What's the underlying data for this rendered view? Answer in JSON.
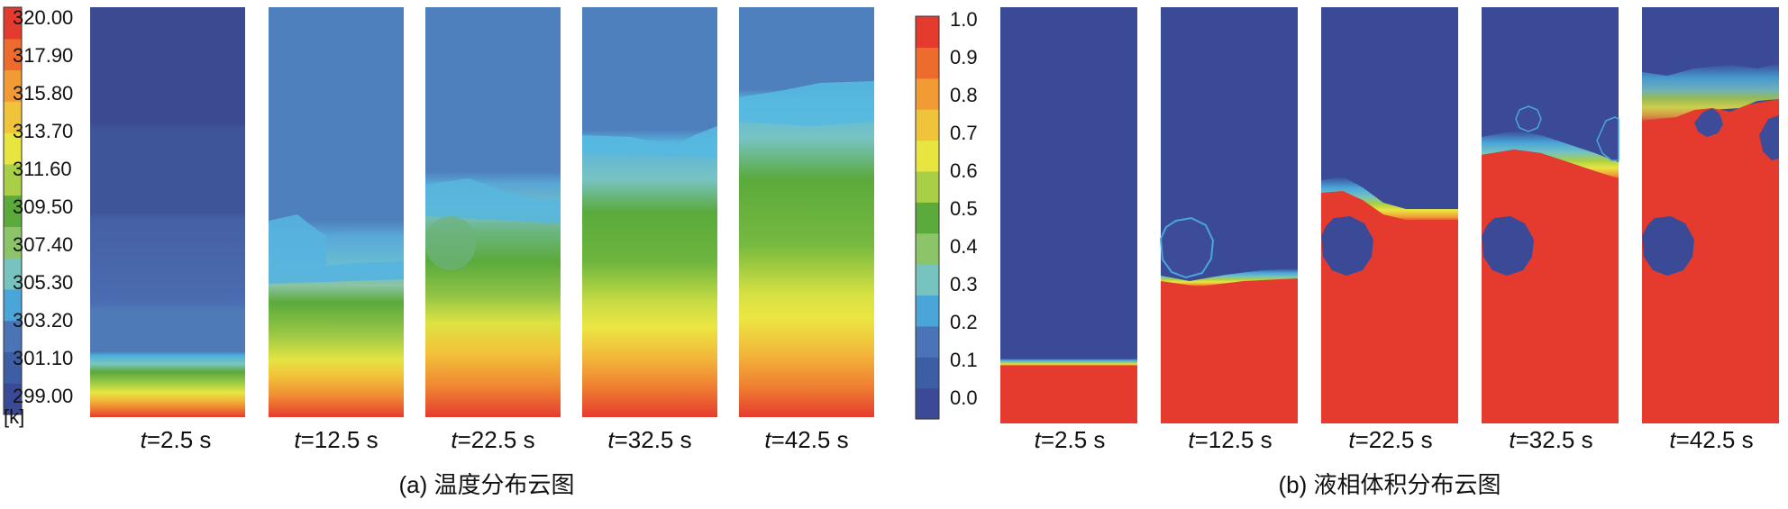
{
  "panel_a": {
    "caption": "(a) 温度分布云图",
    "colorbar": {
      "unit": "[k]",
      "ticks": [
        "320.00",
        "317.90",
        "315.80",
        "313.70",
        "311.60",
        "309.50",
        "307.40",
        "305.30",
        "303.20",
        "301.10",
        "299.00"
      ]
    },
    "frames": [
      {
        "t_var": "t",
        "t_value": "=2.5 s"
      },
      {
        "t_var": "t",
        "t_value": "=12.5 s"
      },
      {
        "t_var": "t",
        "t_value": "=22.5 s"
      },
      {
        "t_var": "t",
        "t_value": "=32.5 s"
      },
      {
        "t_var": "t",
        "t_value": "=42.5 s"
      }
    ]
  },
  "panel_b": {
    "caption": "(b) 液相体积分布云图",
    "colorbar": {
      "ticks": [
        "1.0",
        "0.9",
        "0.8",
        "0.7",
        "0.6",
        "0.5",
        "0.4",
        "0.3",
        "0.2",
        "0.1",
        "0.0"
      ]
    },
    "frames": [
      {
        "t_var": "t",
        "t_value": "=2.5 s"
      },
      {
        "t_var": "t",
        "t_value": "=12.5 s"
      },
      {
        "t_var": "t",
        "t_value": "=22.5 s"
      },
      {
        "t_var": "t",
        "t_value": "=32.5 s"
      },
      {
        "t_var": "t",
        "t_value": "=42.5 s"
      }
    ]
  },
  "colors": {
    "jet": [
      "#3a4a96",
      "#3d5da5",
      "#4a74b5",
      "#4aa6d8",
      "#76c3c0",
      "#8cc46a",
      "#5aaa3c",
      "#a8cf45",
      "#e8e540",
      "#f0c43a",
      "#f29b35",
      "#ec6b2d",
      "#e53b2e"
    ],
    "liquid": "#e53b2e",
    "gas": "#3a4a96"
  }
}
